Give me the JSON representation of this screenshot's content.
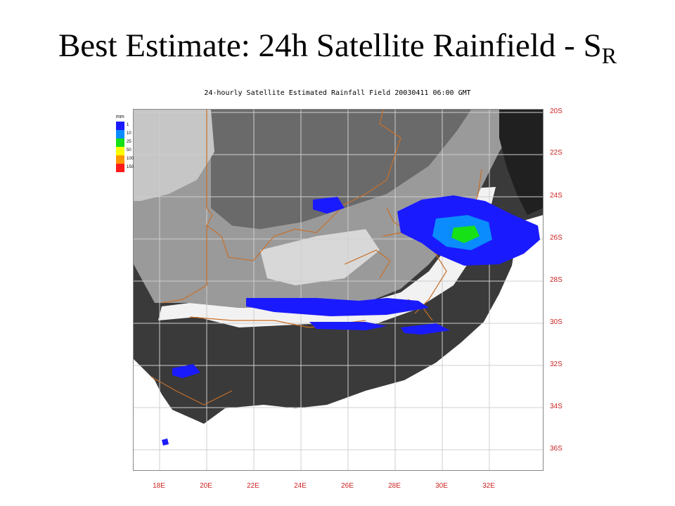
{
  "slide": {
    "title_main": "Best Estimate: 24h Satellite Rainfield - S",
    "title_sub": "R"
  },
  "map": {
    "caption": "24-hourly Satellite Estimated Rainfall Field 20030411 06:00 GMT",
    "lat_labels": [
      "20S",
      "22S",
      "24S",
      "26S",
      "28S",
      "30S",
      "32S",
      "34S",
      "36S"
    ],
    "lon_labels": [
      "18E",
      "20E",
      "22E",
      "24E",
      "26E",
      "28E",
      "30E",
      "32E"
    ],
    "colors": {
      "ocean": "#ffffff",
      "grid": "#cfcfcf",
      "border": "#c8702a",
      "axis_label": "#cc2222"
    }
  },
  "legend": {
    "unit": "mm",
    "items": [
      {
        "label": "1",
        "color": "#1a1aff"
      },
      {
        "label": "10",
        "color": "#0a8cff"
      },
      {
        "label": "25",
        "color": "#16e016"
      },
      {
        "label": "50",
        "color": "#ffff00"
      },
      {
        "label": "100",
        "color": "#ff9900"
      },
      {
        "label": "150",
        "color": "#ff1a1a"
      }
    ]
  }
}
